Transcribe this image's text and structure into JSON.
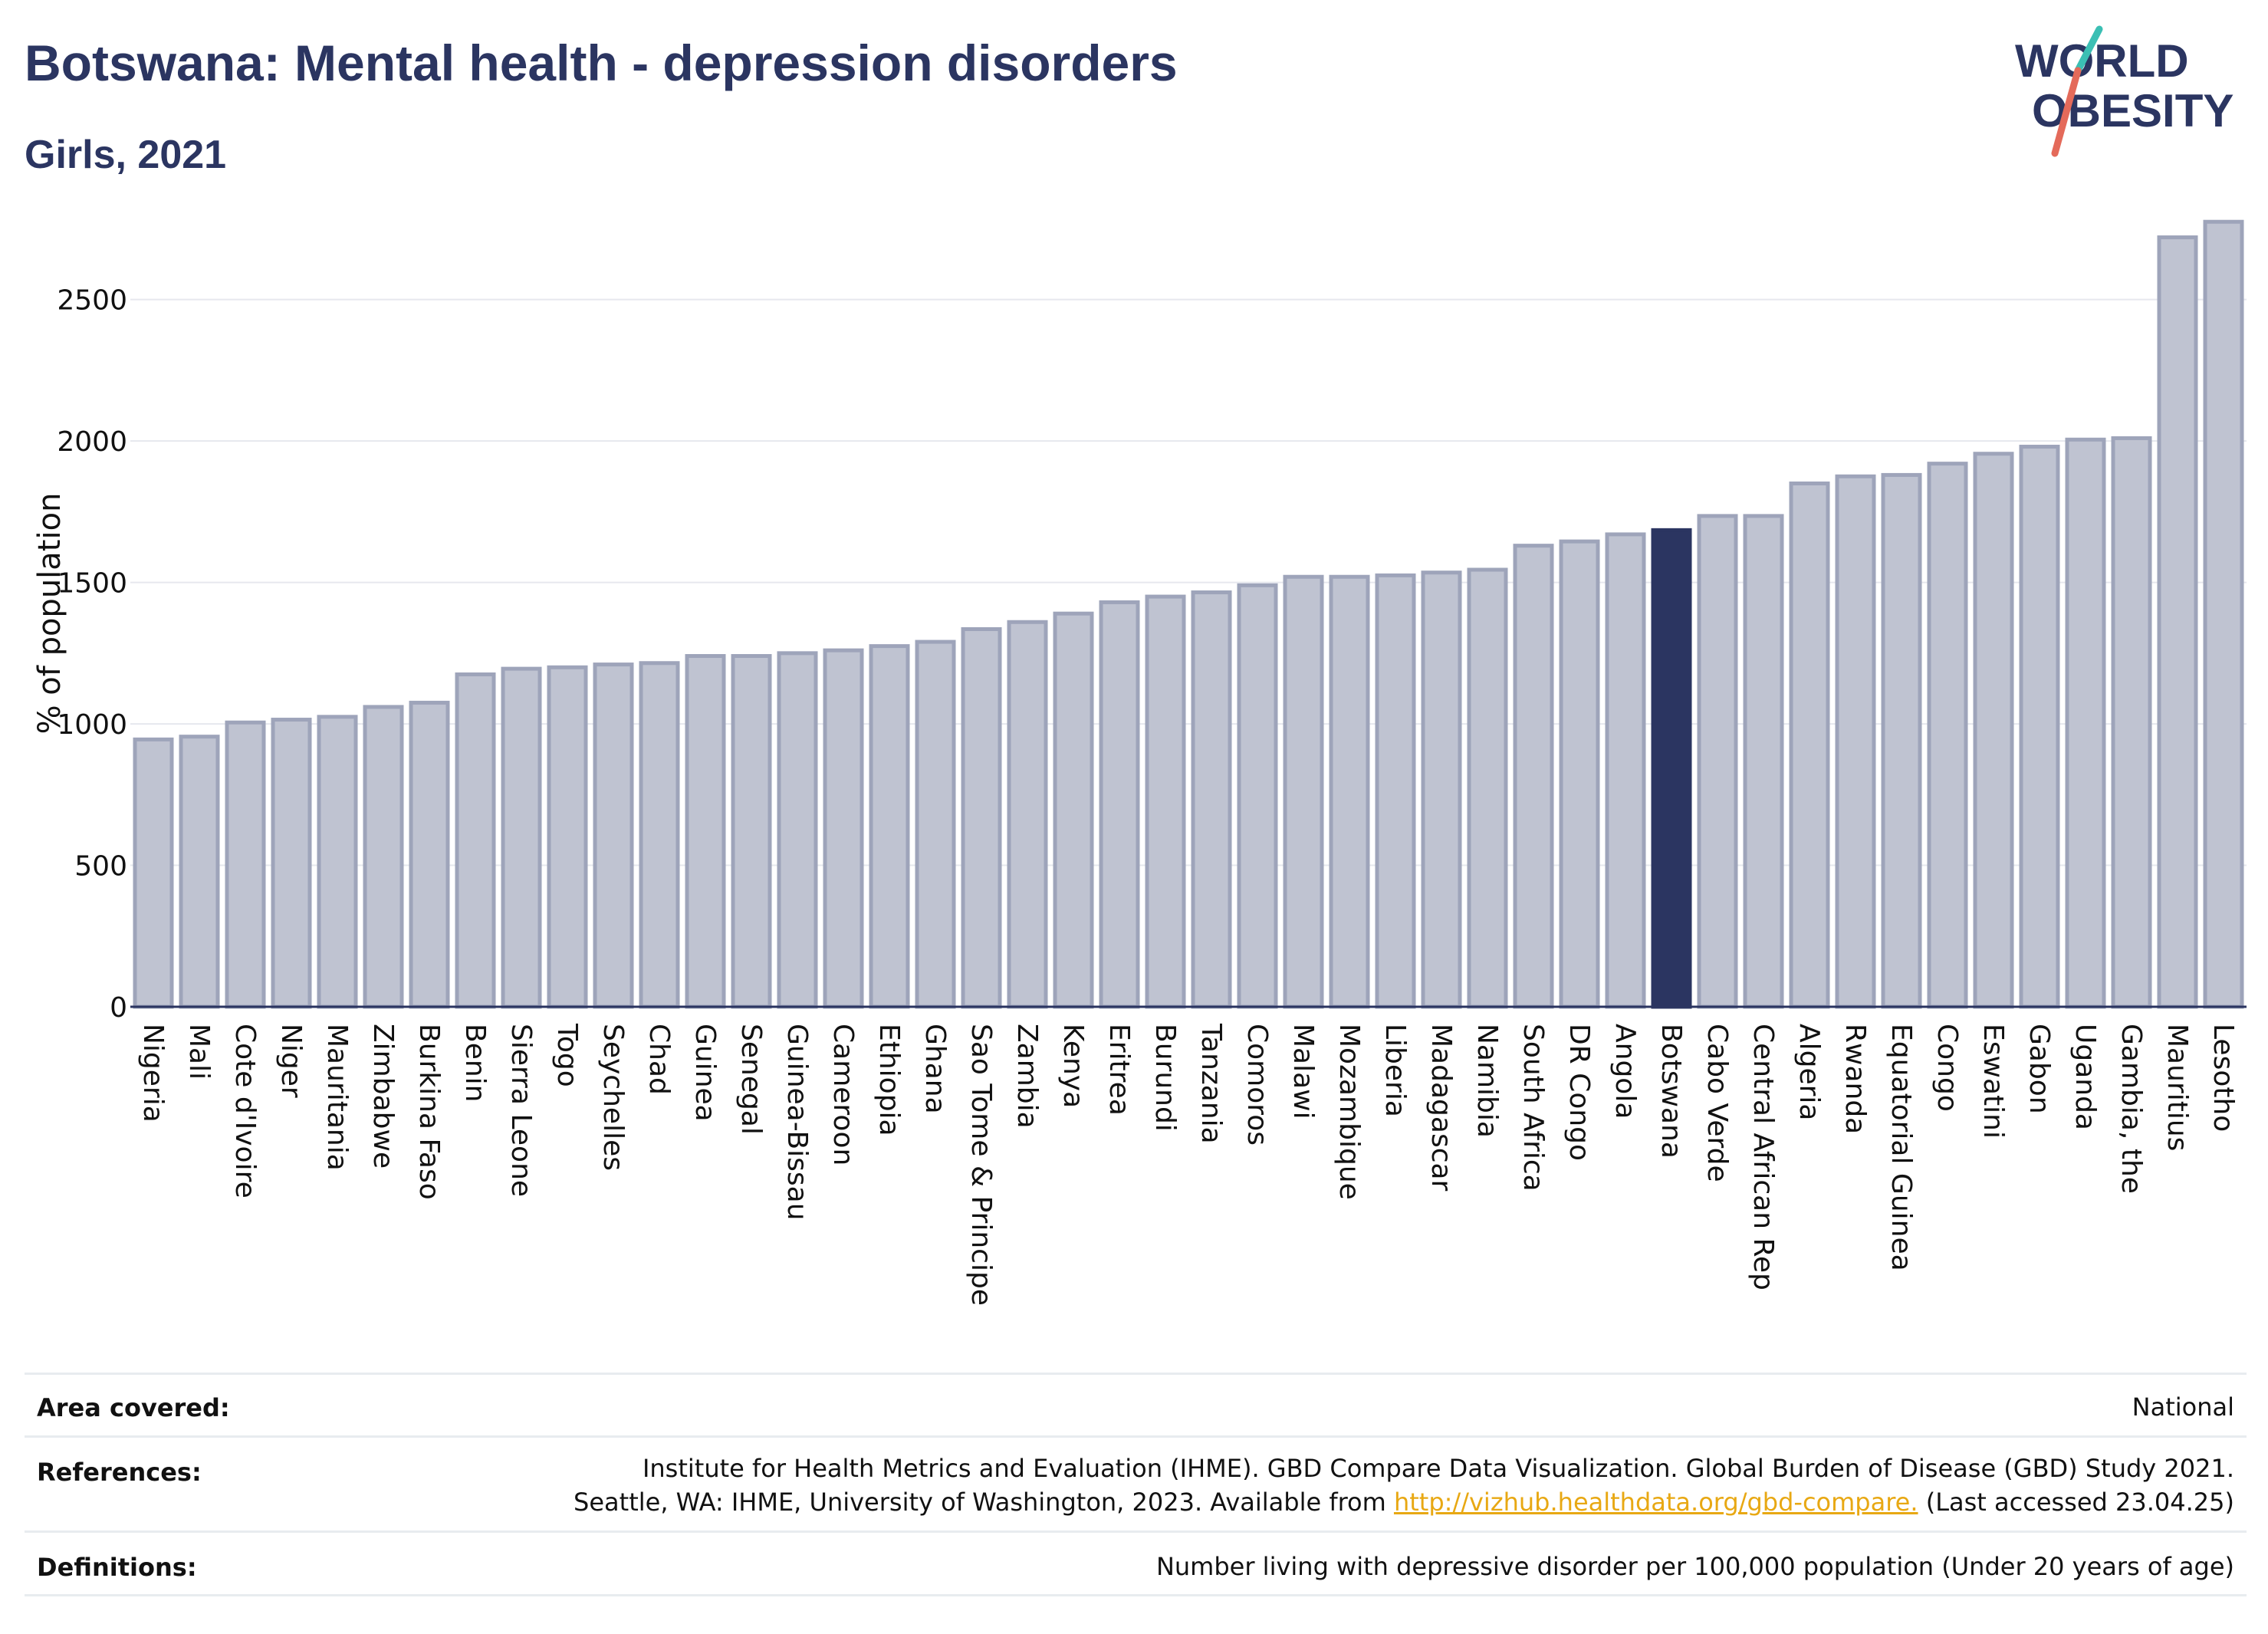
{
  "header": {
    "title": "Botswana: Mental health - depression disorders",
    "subtitle": "Girls, 2021"
  },
  "logo": {
    "line1": "WORLD",
    "line2": "OBESITY",
    "icon": "world-obesity-logo"
  },
  "colors": {
    "bar": "#bfc3d1",
    "bar_stroke": "#9ea4ba",
    "highlight": "#2b3561",
    "title": "#2b3561",
    "grid": "#e6e8ee",
    "link": "#e8a813"
  },
  "chart_data": {
    "type": "bar",
    "title": "Botswana: Mental health - depression disorders",
    "subtitle": "Girls, 2021",
    "xlabel": "",
    "ylabel": "% of population",
    "ylim": [
      0,
      2800
    ],
    "yticks": [
      0,
      500,
      1000,
      1500,
      2000,
      2500
    ],
    "grid": true,
    "highlight": "Botswana",
    "categories": [
      "Nigeria",
      "Mali",
      "Cote d'Ivoire",
      "Niger",
      "Mauritania",
      "Zimbabwe",
      "Burkina Faso",
      "Benin",
      "Sierra Leone",
      "Togo",
      "Seychelles",
      "Chad",
      "Guinea",
      "Senegal",
      "Guinea-Bissau",
      "Cameroon",
      "Ethiopia",
      "Ghana",
      "Sao Tome & Principe",
      "Zambia",
      "Kenya",
      "Eritrea",
      "Burundi",
      "Tanzania",
      "Comoros",
      "Malawi",
      "Mozambique",
      "Liberia",
      "Madagascar",
      "Namibia",
      "South Africa",
      "DR Congo",
      "Angola",
      "Botswana",
      "Cabo Verde",
      "Central African Rep",
      "Algeria",
      "Rwanda",
      "Equatorial Guinea",
      "Congo",
      "Eswatini",
      "Gabon",
      "Uganda",
      "Gambia, the",
      "Mauritius",
      "Lesotho"
    ],
    "values": [
      945,
      955,
      1005,
      1015,
      1025,
      1060,
      1075,
      1175,
      1195,
      1200,
      1210,
      1215,
      1240,
      1240,
      1250,
      1260,
      1275,
      1290,
      1335,
      1360,
      1390,
      1430,
      1450,
      1465,
      1490,
      1520,
      1520,
      1525,
      1535,
      1545,
      1630,
      1645,
      1670,
      1685,
      1735,
      1735,
      1850,
      1875,
      1880,
      1920,
      1955,
      1980,
      2005,
      2010,
      2720,
      2775
    ]
  },
  "info": {
    "area_label": "Area covered:",
    "area_value": "National",
    "references_label": "References:",
    "references_line1": "Institute for Health Metrics and Evaluation (IHME). GBD Compare Data Visualization. Global Burden of Disease (GBD) Study 2021.",
    "references_line2_pre": "Seattle, WA: IHME, University of Washington, 2023. Available from ",
    "references_link": "http://vizhub.healthdata.org/gbd-compare.",
    "references_line2_post": " (Last accessed 23.04.25)",
    "definitions_label": "Definitions:",
    "definitions_value": "Number living with depressive disorder per 100,000 population (Under 20 years of age)"
  }
}
